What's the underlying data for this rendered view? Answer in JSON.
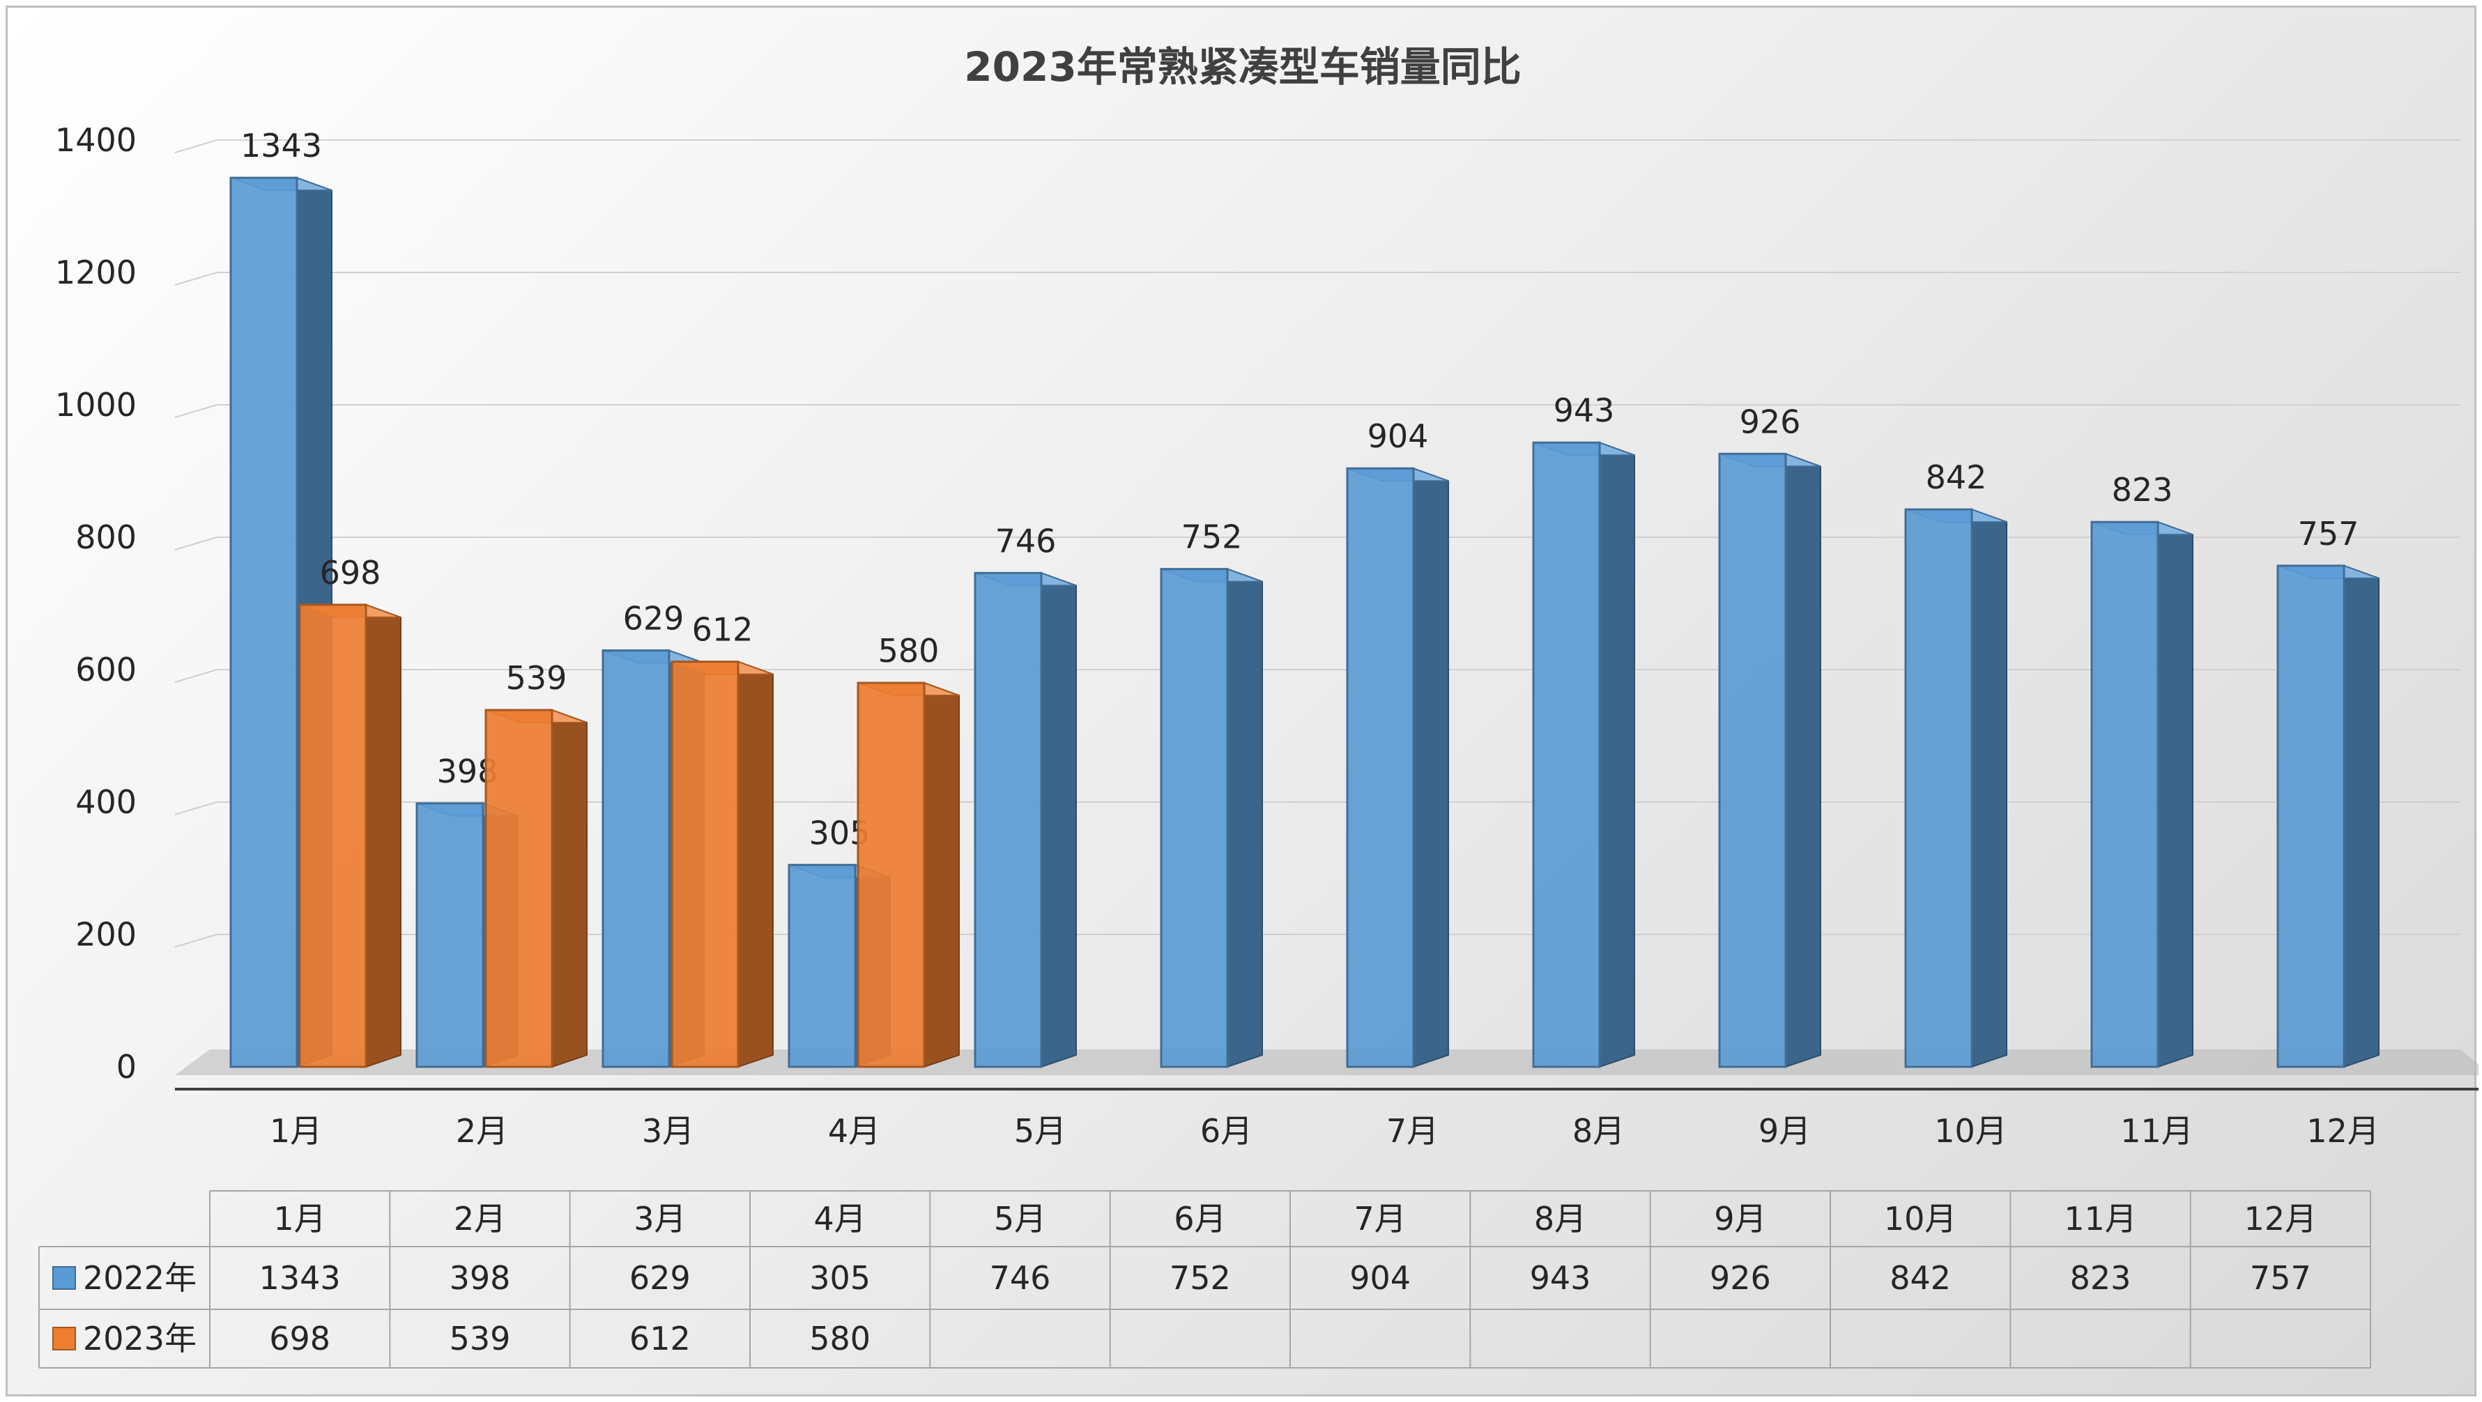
{
  "chart_data": {
    "type": "bar",
    "title": "2023年常熟紧凑型车销量同比",
    "categories": [
      "1月",
      "2月",
      "3月",
      "4月",
      "5月",
      "6月",
      "7月",
      "8月",
      "9月",
      "10月",
      "11月",
      "12月"
    ],
    "series": [
      {
        "name": "2022年",
        "color": "#5b9bd5",
        "values": [
          1343,
          398,
          629,
          305,
          746,
          752,
          904,
          943,
          926,
          842,
          823,
          757
        ]
      },
      {
        "name": "2023年",
        "color": "#ed7d31",
        "values": [
          698,
          539,
          612,
          580,
          null,
          null,
          null,
          null,
          null,
          null,
          null,
          null
        ]
      }
    ],
    "ylim": [
      0,
      1400
    ],
    "yticks": [
      0,
      200,
      400,
      600,
      800,
      1000,
      1200,
      1400
    ],
    "grid": true,
    "legend": "data-table"
  }
}
